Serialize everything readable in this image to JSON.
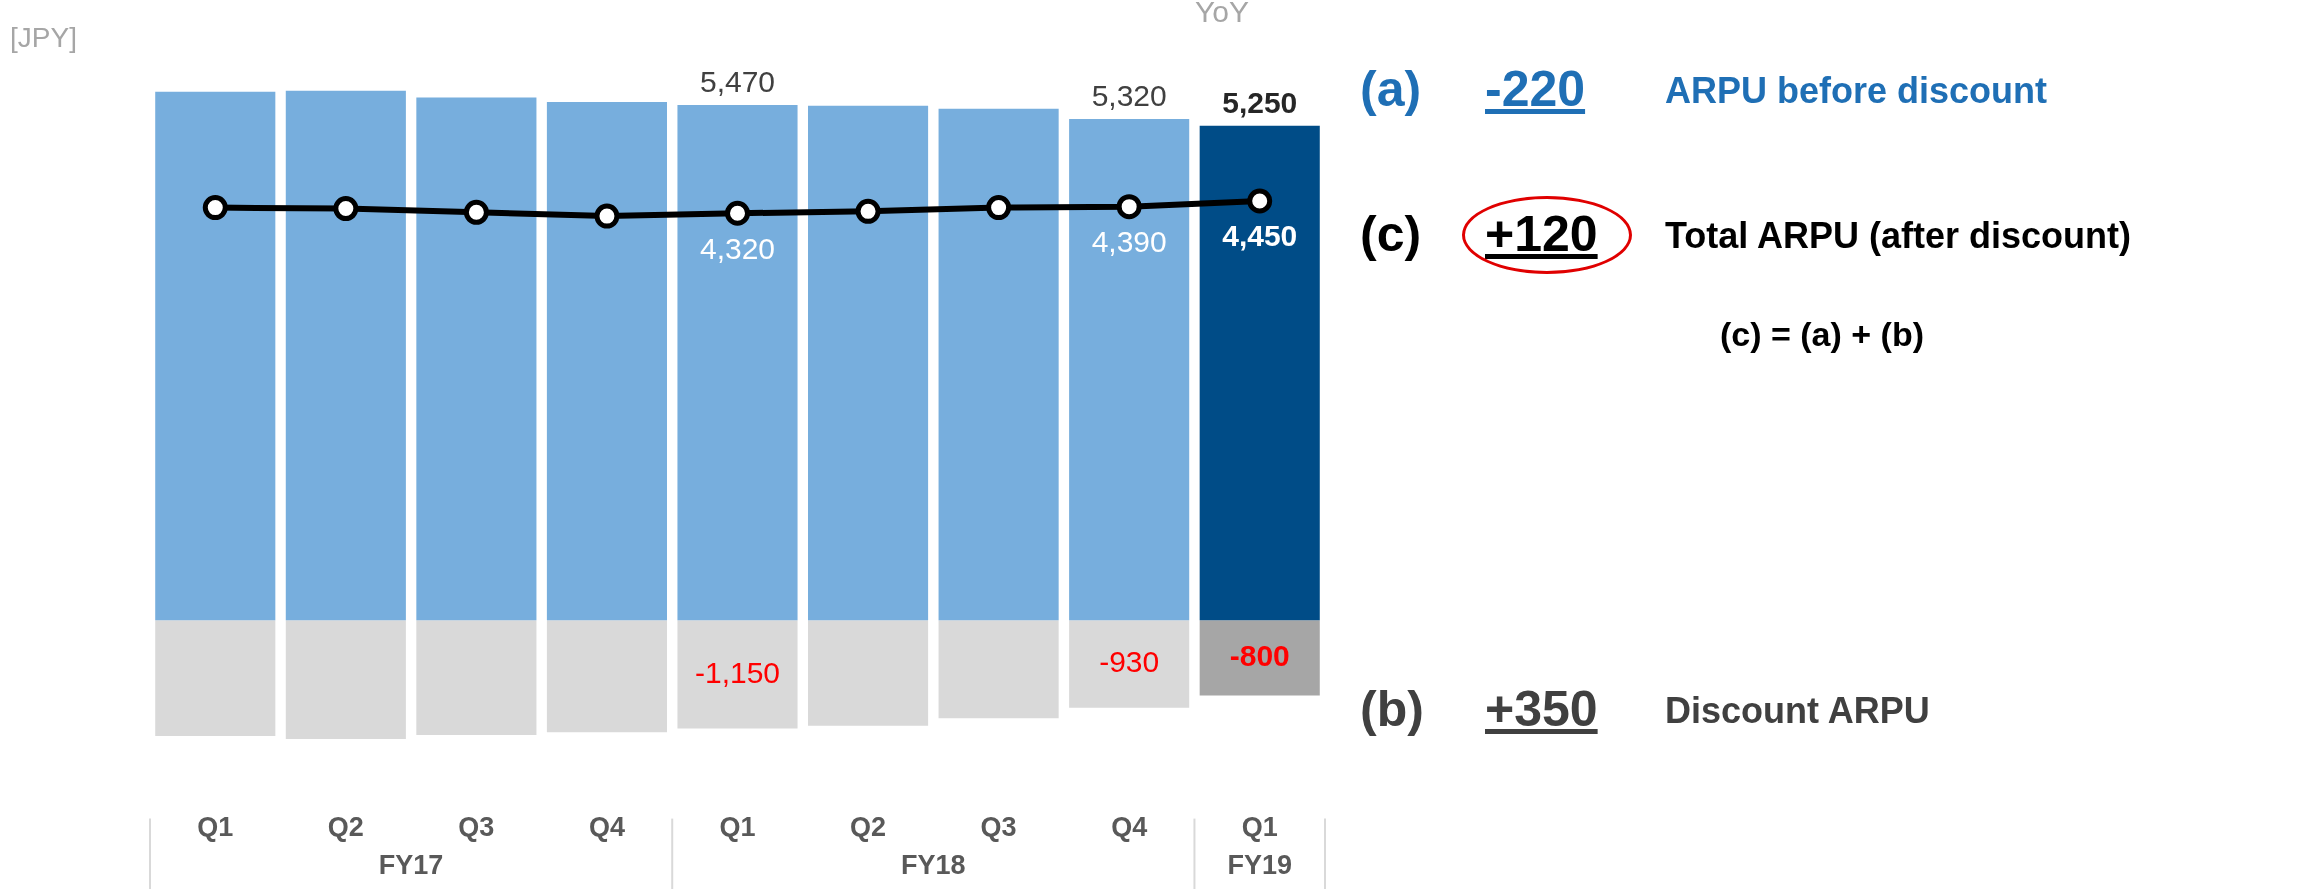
{
  "chart_data": {
    "type": "bar",
    "stacked": true,
    "categories": [
      "Q1",
      "Q2",
      "Q3",
      "Q4",
      "Q1",
      "Q2",
      "Q3",
      "Q4",
      "Q1"
    ],
    "series": [
      {
        "colors": [
          "#77aedd",
          "#77aedd",
          "#77aedd",
          "#77aedd",
          "#77aedd",
          "#77aedd",
          "#77aedd",
          "#77aedd",
          "#004c87"
        ],
        "values": [
          5610,
          5620,
          5550,
          5500,
          5470,
          5460,
          5430,
          5320,
          5250
        ],
        "value_labels": [
          null,
          null,
          null,
          null,
          "5,470",
          null,
          null,
          "5,320",
          "5,250"
        ]
      },
      {
        "type": "bar",
        "colors": [
          "#d9d9d9",
          "#d9d9d9",
          "#d9d9d9",
          "#d9d9d9",
          "#d9d9d9",
          "#d9d9d9",
          "#d9d9d9",
          "#d9d9d9",
          "#a6a6a6"
        ],
        "values": [
          -1230,
          -1260,
          -1220,
          -1190,
          -1150,
          -1120,
          -1040,
          -930,
          -800
        ],
        "value_labels": [
          null,
          null,
          null,
          null,
          "-1,150",
          null,
          null,
          "-930",
          "-800"
        ]
      },
      {
        "type": "line",
        "color": "#000000",
        "marker": "circle",
        "values": [
          4380,
          4370,
          4330,
          4290,
          4320,
          4340,
          4380,
          4390,
          4450
        ],
        "value_labels": [
          null,
          null,
          null,
          null,
          "4,320",
          null,
          null,
          "4,390",
          "4,450"
        ]
      }
    ],
    "grid": false,
    "legend": false,
    "annotations": [
      "FY17",
      "FY18",
      "FY19",
      "[JPY]",
      "YoY",
      "(a)",
      "-220",
      "ARPU before discount",
      "(c)",
      "+120",
      "Total ARPU (after discount)",
      "(c) = (a) + (b)",
      "(b)",
      "+350",
      "Discount ARPU"
    ]
  }
}
